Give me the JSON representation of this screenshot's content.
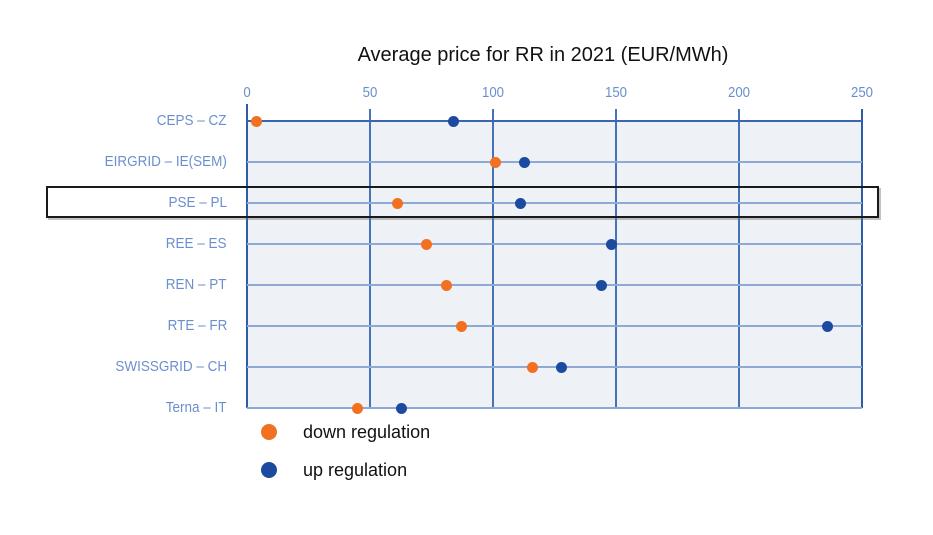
{
  "chart_data": {
    "type": "scatter",
    "title": "Average price for RR in 2021 (EUR/MWh)",
    "xlabel": "",
    "ylabel": "",
    "xlim": [
      0,
      250
    ],
    "xticks": [
      0,
      50,
      100,
      150,
      200,
      250
    ],
    "grid": true,
    "legend_position": "bottom-left",
    "categories": [
      "CEPS – CZ",
      "EIRGRID – IE(SEM)",
      "PSE – PL",
      "REE – ES",
      "REN – PT",
      "RTE – FR",
      "SWISSGRID – CH",
      "Terna – IT"
    ],
    "series": [
      {
        "name": "down regulation",
        "color": "#f2701f",
        "values": [
          4,
          101,
          61,
          73,
          81,
          87,
          116,
          45
        ]
      },
      {
        "name": "up regulation",
        "color": "#1b4a9f",
        "values": [
          84,
          113,
          111,
          148,
          144,
          236,
          128,
          63
        ]
      }
    ],
    "highlighted_category": "PSE – PL",
    "colors": {
      "down_regulation": "#f2701f",
      "up_regulation": "#1b4a9f",
      "axis_label": "#6b8fce",
      "grid_line": "#4672b8",
      "row_line": "#8fa9d6",
      "plot_fill": "#eef1f5"
    }
  }
}
